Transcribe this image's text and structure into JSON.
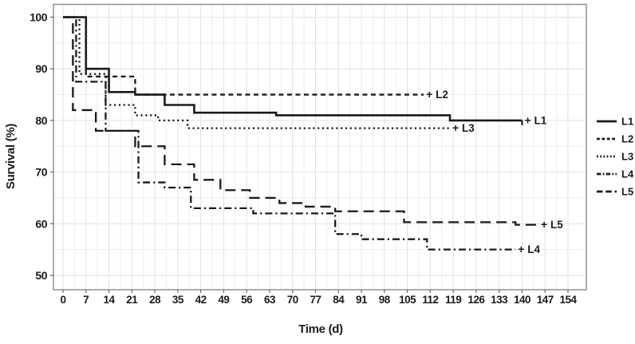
{
  "figure": {
    "x_axis_title": "Time (d)",
    "y_axis_title": "Survival (%)",
    "colors": {
      "line": "#1a1a1a",
      "text": "#1b1b1b",
      "border": "#8a8a8a",
      "grid_minor": "#eeeeee",
      "grid_major": "#e2e2e2",
      "tick": "#666666",
      "background": "#ffffff"
    }
  },
  "chart_data": {
    "type": "line",
    "subtype": "kaplan_meier_step_survival",
    "title": "",
    "xlabel": "Time (d)",
    "ylabel": "Survival (%)",
    "xlim": [
      0,
      154
    ],
    "ylim": [
      50,
      100
    ],
    "x_ticks": [
      0,
      7,
      14,
      21,
      28,
      35,
      42,
      49,
      56,
      63,
      70,
      77,
      84,
      91,
      98,
      105,
      112,
      119,
      126,
      133,
      140,
      147,
      154
    ],
    "y_ticks": [
      50,
      60,
      70,
      80,
      90,
      100
    ],
    "grid": true,
    "x_minor_step": 3.5,
    "y_minor_step": 5,
    "legend_position": "right-outside",
    "legend_entries": [
      "L1",
      "L2",
      "L3",
      "L4",
      "L5"
    ],
    "series": [
      {
        "name": "L1",
        "line_style": "solid",
        "end_label": "L1",
        "censor_marker": "+",
        "censor_day": 140,
        "points": [
          [
            0,
            100
          ],
          [
            7,
            90
          ],
          [
            14,
            85.5
          ],
          [
            22,
            85
          ],
          [
            31,
            83
          ],
          [
            40,
            81.5
          ],
          [
            65,
            81
          ],
          [
            118,
            80
          ]
        ]
      },
      {
        "name": "L2",
        "line_style": "dash",
        "end_label": "L2",
        "censor_marker": "+",
        "censor_day": 110,
        "points": [
          [
            0,
            100
          ],
          [
            7,
            88.5
          ],
          [
            22,
            85
          ]
        ]
      },
      {
        "name": "L3",
        "line_style": "dot",
        "end_label": "L3",
        "censor_marker": "+",
        "censor_day": 118,
        "points": [
          [
            0,
            100
          ],
          [
            5,
            89
          ],
          [
            13,
            83
          ],
          [
            22,
            81
          ],
          [
            29,
            80
          ],
          [
            38,
            78.5
          ]
        ]
      },
      {
        "name": "L4",
        "line_style": "dashdot",
        "end_label": "L4",
        "censor_marker": "+",
        "censor_day": 138,
        "points": [
          [
            0,
            100
          ],
          [
            4,
            87.5
          ],
          [
            13,
            78
          ],
          [
            23,
            68
          ],
          [
            31,
            67
          ],
          [
            39,
            63
          ],
          [
            58,
            62
          ],
          [
            83,
            58
          ],
          [
            91,
            57
          ],
          [
            111,
            55
          ]
        ]
      },
      {
        "name": "L5",
        "line_style": "longdash",
        "end_label": "L5",
        "censor_marker": "+",
        "censor_day": 145,
        "points": [
          [
            0,
            100
          ],
          [
            3,
            82
          ],
          [
            10,
            78
          ],
          [
            22,
            75
          ],
          [
            31,
            71.5
          ],
          [
            40,
            68.5
          ],
          [
            48,
            66.5
          ],
          [
            57,
            65
          ],
          [
            66,
            64
          ],
          [
            74,
            63.3
          ],
          [
            83,
            62.4
          ],
          [
            104,
            60.3
          ],
          [
            138,
            59.8
          ]
        ]
      }
    ]
  }
}
